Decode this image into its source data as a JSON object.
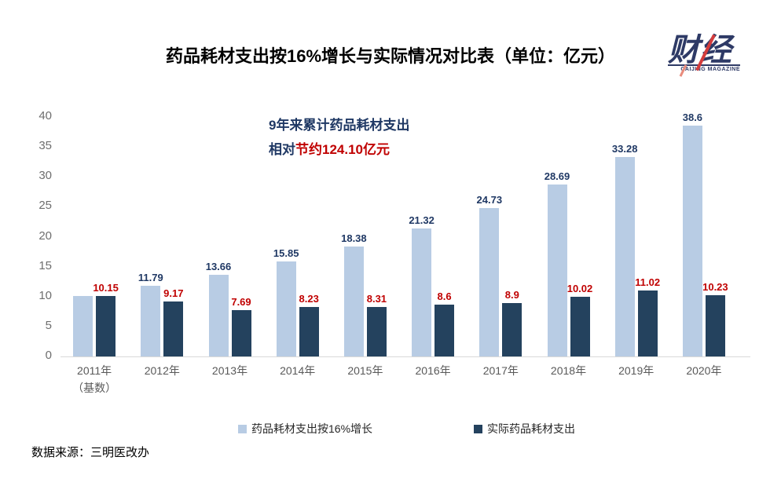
{
  "title": "药品耗材支出按16%增长与实际情况对比表（单位：亿元）",
  "logo": {
    "text": "财经",
    "subtext": "CAIJING MAGAZINE"
  },
  "annotation": {
    "line1": "9年来累计药品耗材支出",
    "line2_prefix": "相对",
    "line2_highlight": "节约124.10亿元"
  },
  "source": "数据来源：三明医改办",
  "colors": {
    "light_series": "#b8cce4",
    "dark_series": "#24425e",
    "label_navy": "#1f3864",
    "label_red": "#c00000",
    "axis_text": "#6e6e6e",
    "axis_line": "#d9d9d9"
  },
  "chart_data": {
    "type": "bar",
    "title": "药品耗材支出按16%增长与实际情况对比表（单位：亿元）",
    "unit": "亿元",
    "categories": [
      {
        "label": "2011年",
        "sublabel": "（基数）"
      },
      {
        "label": "2012年"
      },
      {
        "label": "2013年"
      },
      {
        "label": "2014年"
      },
      {
        "label": "2015年"
      },
      {
        "label": "2016年"
      },
      {
        "label": "2017年"
      },
      {
        "label": "2018年"
      },
      {
        "label": "2019年"
      },
      {
        "label": "2020年"
      }
    ],
    "series": [
      {
        "name": "药品耗材支出按16%增长",
        "color": "#b8cce4",
        "label_color": "#1f3864",
        "values": [
          10.15,
          11.79,
          13.66,
          15.85,
          18.38,
          21.32,
          24.73,
          28.69,
          33.28,
          38.6
        ],
        "labels": [
          "",
          "11.79",
          "13.66",
          "15.85",
          "18.38",
          "21.32",
          "24.73",
          "28.69",
          "33.28",
          "38.6"
        ]
      },
      {
        "name": "实际药品耗材支出",
        "color": "#24425e",
        "label_color": "#c00000",
        "values": [
          10.15,
          9.17,
          7.69,
          8.23,
          8.31,
          8.6,
          8.9,
          10.02,
          11.02,
          10.23
        ],
        "labels": [
          "10.15",
          "9.17",
          "7.69",
          "8.23",
          "8.31",
          "8.6",
          "8.9",
          "10.02",
          "11.02",
          "10.23"
        ]
      }
    ],
    "ylim": [
      0,
      40
    ],
    "yticks": [
      0,
      5,
      10,
      15,
      20,
      25,
      30,
      35,
      40
    ],
    "grid": false,
    "legend_position": "bottom"
  }
}
